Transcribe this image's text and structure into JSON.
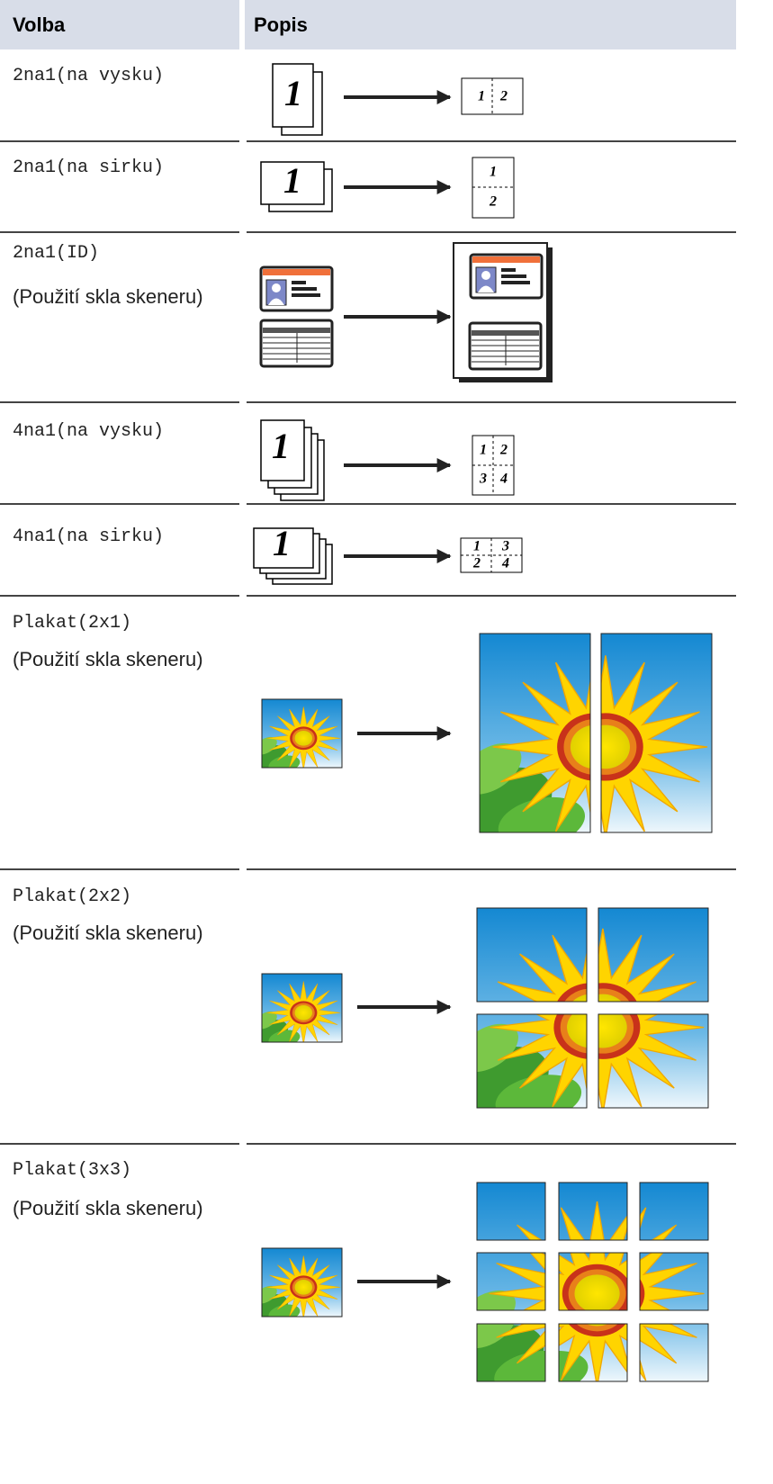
{
  "header": {
    "columns": [
      "Volba",
      "Popis"
    ]
  },
  "table": {
    "rows": [
      {
        "option": "2na1(na vysku)",
        "figure_text": [
          "1",
          "1",
          "2"
        ]
      },
      {
        "option": "2na1(na sirku)",
        "figure_text": [
          "1",
          "1",
          "2"
        ]
      },
      {
        "option": "2na1(ID)",
        "note": "(Použití skla skeneru)"
      },
      {
        "option": "4na1(na vysku)",
        "figure_text": [
          "1",
          "1",
          "2",
          "3",
          "4"
        ]
      },
      {
        "option": "4na1(na sirku)",
        "figure_text": [
          "1",
          "1",
          "3",
          "2",
          "4"
        ]
      },
      {
        "option": "Plakat(2x1)",
        "note": "(Použití skla skeneru)"
      },
      {
        "option": "Plakat(2x2)",
        "note": "(Použití skla skeneru)"
      },
      {
        "option": "Plakat(3x3)",
        "note": "(Použití skla skeneru)"
      }
    ]
  }
}
